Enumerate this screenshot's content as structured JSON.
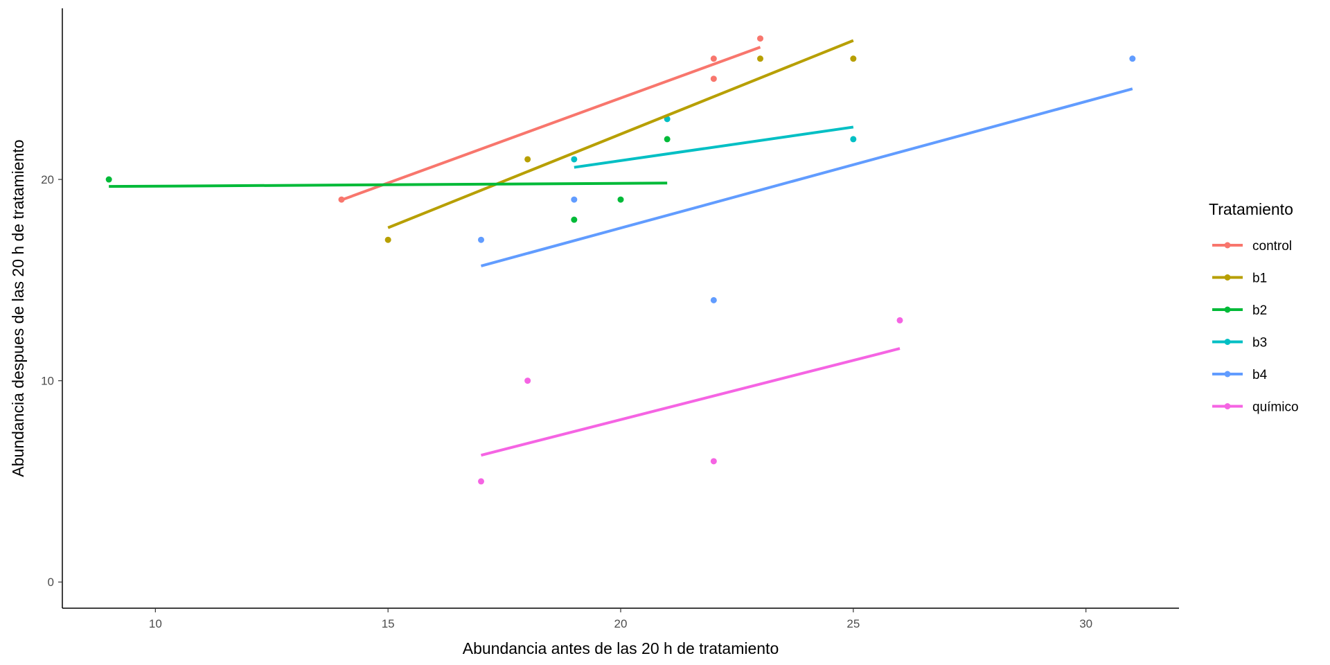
{
  "chart_data": {
    "type": "scatter",
    "title": "",
    "xlabel": "Abundancia antes de las 20 h de tratamiento",
    "ylabel": "Abundancia despues de las 20 h de tratamiento",
    "xlim": [
      8,
      32
    ],
    "ylim": [
      -1.3,
      28.5
    ],
    "x_ticks": [
      10,
      15,
      20,
      25,
      30
    ],
    "y_ticks": [
      0,
      10,
      20
    ],
    "grid": false,
    "legend_title": "Tratamiento",
    "legend_position": "right",
    "series": [
      {
        "name": "control",
        "color": "#F8766D",
        "points": [
          [
            14,
            19
          ],
          [
            22,
            26
          ],
          [
            22,
            25
          ],
          [
            23,
            27
          ]
        ],
        "fit": [
          [
            14,
            18.98
          ],
          [
            23,
            26.57
          ]
        ]
      },
      {
        "name": "b1",
        "color": "#B79F00",
        "points": [
          [
            15,
            17
          ],
          [
            18,
            21
          ],
          [
            23,
            26
          ],
          [
            25,
            26
          ]
        ],
        "fit": [
          [
            15,
            17.6
          ],
          [
            25,
            26.9
          ]
        ]
      },
      {
        "name": "b2",
        "color": "#00BA38",
        "points": [
          [
            9,
            20
          ],
          [
            19,
            18
          ],
          [
            20,
            19
          ],
          [
            21,
            22
          ]
        ],
        "fit": [
          [
            9,
            19.65
          ],
          [
            21,
            19.82
          ]
        ]
      },
      {
        "name": "b3",
        "color": "#00BFC4",
        "points": [
          [
            19,
            21
          ],
          [
            21,
            23
          ],
          [
            25,
            22
          ]
        ],
        "fit": [
          [
            19,
            20.6
          ],
          [
            25,
            22.6
          ]
        ]
      },
      {
        "name": "b4",
        "color": "#619CFF",
        "points": [
          [
            17,
            17
          ],
          [
            19,
            19
          ],
          [
            22,
            14
          ],
          [
            31,
            26
          ]
        ],
        "fit": [
          [
            17,
            15.7
          ],
          [
            31,
            24.5
          ]
        ]
      },
      {
        "name": "químico",
        "color": "#F564E3",
        "points": [
          [
            17,
            5
          ],
          [
            18,
            10
          ],
          [
            22,
            6
          ],
          [
            26,
            13
          ]
        ],
        "fit": [
          [
            17,
            6.3
          ],
          [
            26,
            11.6
          ]
        ]
      }
    ]
  }
}
